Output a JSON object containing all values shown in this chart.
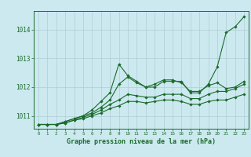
{
  "bg_color": "#cce9f0",
  "grid_color": "#b0ccd4",
  "line_color": "#1a6b2a",
  "ylim": [
    1010.55,
    1014.65
  ],
  "xlim": [
    -0.5,
    23.5
  ],
  "yticks": [
    1011,
    1012,
    1013,
    1014
  ],
  "xticks": [
    0,
    1,
    2,
    3,
    4,
    5,
    6,
    7,
    8,
    9,
    10,
    11,
    12,
    13,
    14,
    15,
    16,
    17,
    18,
    19,
    20,
    21,
    22,
    23
  ],
  "xlabel": "Graphe pression niveau de la mer (hPa)",
  "series": [
    {
      "x": [
        0,
        1,
        2,
        3,
        4,
        5,
        6,
        7,
        8,
        9,
        10,
        11,
        12,
        13,
        14,
        15,
        16,
        17,
        18,
        19,
        20,
        21,
        22,
        23
      ],
      "y": [
        1010.7,
        1010.7,
        1010.7,
        1010.8,
        1010.9,
        1011.0,
        1011.2,
        1011.5,
        1011.8,
        1012.8,
        1012.4,
        1012.2,
        1012.0,
        1012.0,
        1012.2,
        1012.2,
        1012.2,
        1011.8,
        1011.8,
        1012.1,
        1012.7,
        1013.9,
        1014.1,
        1014.45
      ]
    },
    {
      "x": [
        0,
        1,
        2,
        3,
        4,
        5,
        6,
        7,
        8,
        9,
        10,
        11,
        12,
        13,
        14,
        15,
        16,
        17,
        18,
        19,
        20,
        21,
        22,
        23
      ],
      "y": [
        1010.7,
        1010.7,
        1010.7,
        1010.8,
        1010.9,
        1011.0,
        1011.1,
        1011.3,
        1011.55,
        1012.1,
        1012.35,
        1012.15,
        1012.0,
        1012.1,
        1012.25,
        1012.25,
        1012.15,
        1011.85,
        1011.85,
        1012.05,
        1012.15,
        1011.95,
        1012.0,
        1012.2
      ]
    },
    {
      "x": [
        0,
        1,
        2,
        3,
        4,
        5,
        6,
        7,
        8,
        9,
        10,
        11,
        12,
        13,
        14,
        15,
        16,
        17,
        18,
        19,
        20,
        21,
        22,
        23
      ],
      "y": [
        1010.7,
        1010.7,
        1010.7,
        1010.75,
        1010.85,
        1010.95,
        1011.05,
        1011.2,
        1011.4,
        1011.55,
        1011.75,
        1011.7,
        1011.65,
        1011.65,
        1011.75,
        1011.75,
        1011.75,
        1011.6,
        1011.6,
        1011.75,
        1011.85,
        1011.85,
        1011.95,
        1012.1
      ]
    },
    {
      "x": [
        0,
        1,
        2,
        3,
        4,
        5,
        6,
        7,
        8,
        9,
        10,
        11,
        12,
        13,
        14,
        15,
        16,
        17,
        18,
        19,
        20,
        21,
        22,
        23
      ],
      "y": [
        1010.7,
        1010.7,
        1010.7,
        1010.75,
        1010.85,
        1010.9,
        1011.0,
        1011.1,
        1011.25,
        1011.35,
        1011.5,
        1011.5,
        1011.45,
        1011.5,
        1011.55,
        1011.55,
        1011.5,
        1011.4,
        1011.4,
        1011.5,
        1011.55,
        1011.55,
        1011.65,
        1011.75
      ]
    }
  ]
}
